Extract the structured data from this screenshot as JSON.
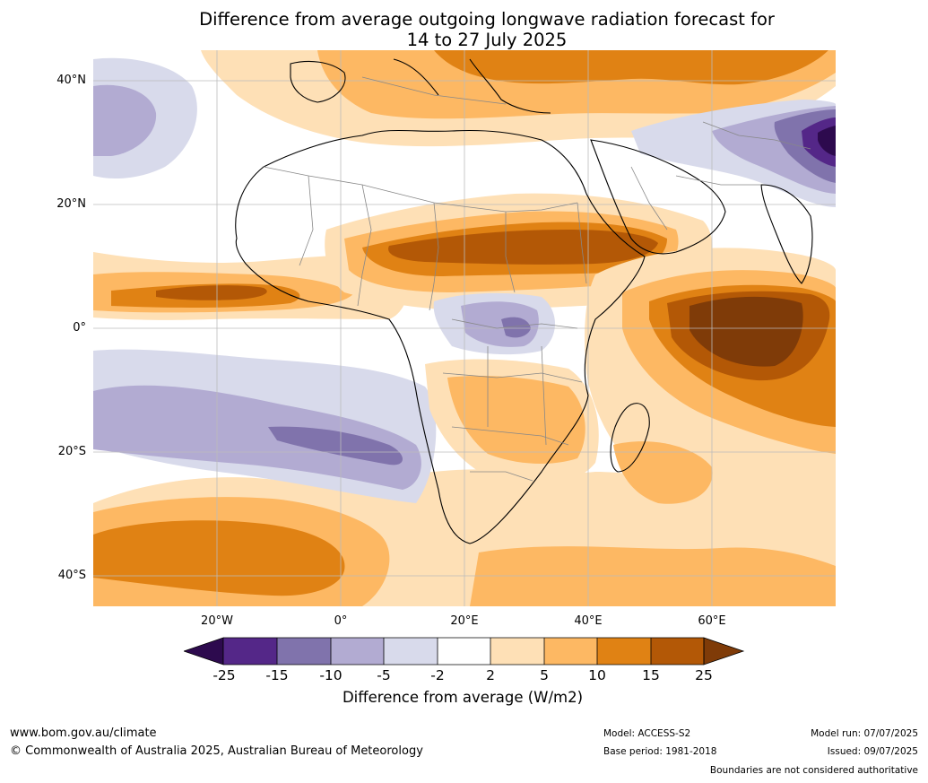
{
  "header": {
    "title_line1": "Difference from average outgoing longwave radiation forecast for",
    "title_line2": "14 to 27 July 2025"
  },
  "map": {
    "lon_range": [
      -40,
      80
    ],
    "lat_range": [
      -45,
      44
    ],
    "lat_labels": [
      "40°N",
      "20°N",
      "0°",
      "20°S",
      "40°S"
    ],
    "lon_labels": [
      "20°W",
      "0°",
      "20°E",
      "40°E",
      "60°E"
    ]
  },
  "colorbar": {
    "label": "Difference from average (W/m2)",
    "ticks": [
      "-25",
      "-15",
      "-10",
      "-5",
      "-2",
      "2",
      "5",
      "10",
      "15",
      "25"
    ],
    "colors": {
      "below_-25": "#2d0a4e",
      "-25_-15": "#542788",
      "-15_-10": "#8073ac",
      "-10_-5": "#b2abd2",
      "-5_-2": "#d8daeb",
      "-2_2": "#ffffff",
      "2_5": "#fee0b6",
      "5_10": "#fdb863",
      "10_15": "#e08214",
      "15_25": "#b35806",
      "above_25": "#7f3b08"
    }
  },
  "footer": {
    "website": "www.bom.gov.au/climate",
    "copyright": "© Commonwealth of Australia 2025, Australian Bureau of Meteorology",
    "model": "Model: ACCESS-S2",
    "base_period": "Base period: 1981-2018",
    "model_run": "Model run: 07/07/2025",
    "issued": "Issued: 09/07/2025",
    "disclaimer": "Boundaries are not considered authoritative"
  }
}
